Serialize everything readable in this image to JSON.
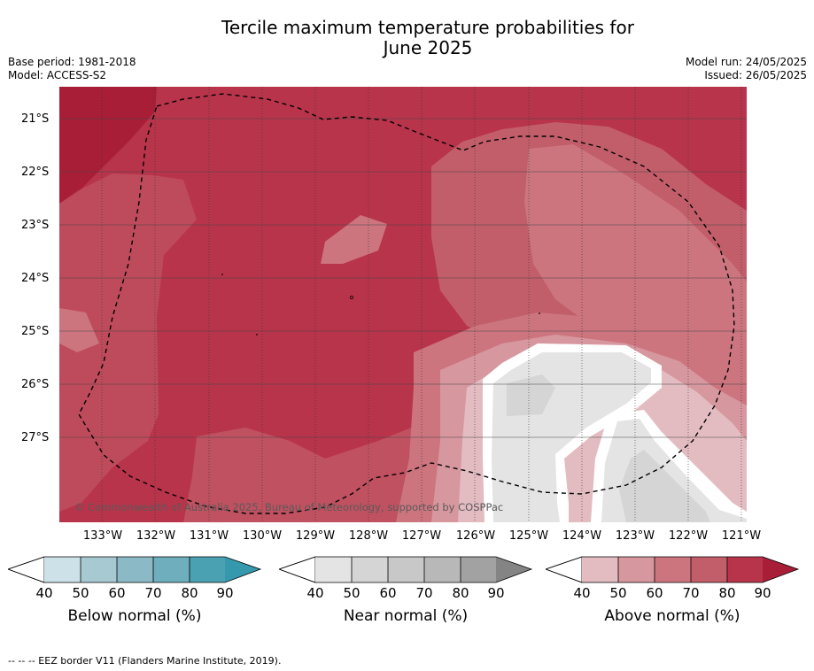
{
  "title_line1": "Tercile maximum temperature probabilities for",
  "title_line2": "June 2025",
  "base_period": "Base period: 1981-2018",
  "model": "Model: ACCESS-S2",
  "model_run": "Model run: 24/05/2025",
  "issued": "Issued: 26/05/2025",
  "lat_labels": [
    "21°S",
    "22°S",
    "23°S",
    "24°S",
    "25°S",
    "26°S",
    "27°S"
  ],
  "lon_labels": [
    "133°W",
    "132°W",
    "131°W",
    "130°W",
    "129°W",
    "128°W",
    "127°W",
    "126°W",
    "125°W",
    "124°W",
    "123°W",
    "122°W",
    "121°W"
  ],
  "copyright": "© Commonwealth of Australia 2025, Bureau of Meteorology, supported by COSPPac",
  "colorbars": [
    {
      "label": "Below normal (%)",
      "ticks": [
        "40",
        "50",
        "60",
        "70",
        "80",
        "90"
      ],
      "colors": [
        "#cde2e8",
        "#a7cad2",
        "#8bbac6",
        "#6eaebd",
        "#4aa1b2",
        "#3598ac"
      ]
    },
    {
      "label": "Near normal (%)",
      "ticks": [
        "40",
        "50",
        "60",
        "70",
        "80",
        "90"
      ],
      "colors": [
        "#e4e4e4",
        "#d5d5d5",
        "#c8c8c8",
        "#b8b8b8",
        "#a2a2a2",
        "#848484"
      ]
    },
    {
      "label": "Above normal (%)",
      "ticks": [
        "40",
        "50",
        "60",
        "70",
        "80",
        "90"
      ],
      "colors": [
        "#e3bcc2",
        "#d7979f",
        "#cc757f",
        "#c25e6a",
        "#b8344b",
        "#a81e37"
      ]
    }
  ],
  "footnote": "--  --  -- EEZ border V11 (Flanders Marine Institute, 2019)."
}
